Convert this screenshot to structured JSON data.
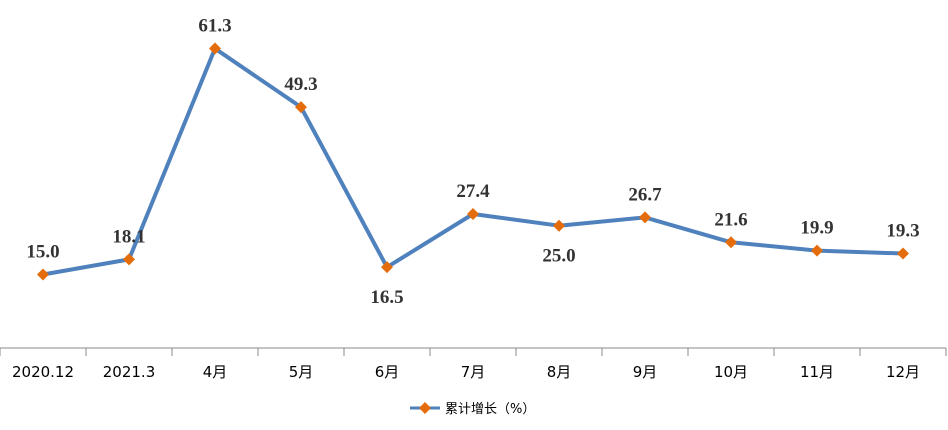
{
  "chart_data": {
    "type": "line",
    "categories": [
      "2020.12",
      "2021.3",
      "4月",
      "5月",
      "6月",
      "7月",
      "8月",
      "9月",
      "10月",
      "11月",
      "12月"
    ],
    "series": [
      {
        "name": "累计增长（%）",
        "values": [
          15.0,
          18.1,
          61.3,
          49.3,
          16.5,
          27.4,
          25.0,
          26.7,
          21.6,
          19.9,
          19.3
        ],
        "labels": [
          "15.0",
          "18.1",
          "61.3",
          "49.3",
          "16.5",
          "27.4",
          "25.0",
          "26.7",
          "21.6",
          "19.9",
          "19.3"
        ],
        "line_color": "#4F81BD",
        "marker_color": "#E46C0A",
        "marker": "diamond"
      }
    ],
    "xlabel": "",
    "ylabel": "",
    "ylim": [
      0,
      70
    ],
    "grid": false,
    "y_axis_visible": false,
    "legend_position": "bottom"
  }
}
